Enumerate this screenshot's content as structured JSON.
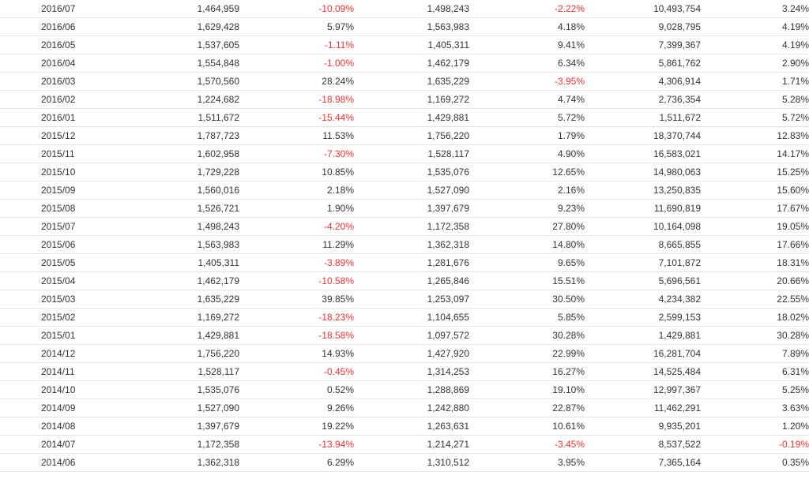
{
  "colors": {
    "text": "#333333",
    "negative": "#ee3333",
    "row_border": "#e2e2e2",
    "background": "#ffffff"
  },
  "rows": [
    {
      "month": "2016/07",
      "col1": "1,464,959",
      "col2": "-10.09%",
      "col3": "1,498,243",
      "col4": "-2.22%",
      "col5": "10,493,754",
      "col6": "3.24%"
    },
    {
      "month": "2016/06",
      "col1": "1,629,428",
      "col2": "5.97%",
      "col3": "1,563,983",
      "col4": "4.18%",
      "col5": "9,028,795",
      "col6": "4.19%"
    },
    {
      "month": "2016/05",
      "col1": "1,537,605",
      "col2": "-1.11%",
      "col3": "1,405,311",
      "col4": "9.41%",
      "col5": "7,399,367",
      "col6": "4.19%"
    },
    {
      "month": "2016/04",
      "col1": "1,554,848",
      "col2": "-1.00%",
      "col3": "1,462,179",
      "col4": "6.34%",
      "col5": "5,861,762",
      "col6": "2.90%"
    },
    {
      "month": "2016/03",
      "col1": "1,570,560",
      "col2": "28.24%",
      "col3": "1,635,229",
      "col4": "-3.95%",
      "col5": "4,306,914",
      "col6": "1.71%"
    },
    {
      "month": "2016/02",
      "col1": "1,224,682",
      "col2": "-18.98%",
      "col3": "1,169,272",
      "col4": "4.74%",
      "col5": "2,736,354",
      "col6": "5.28%"
    },
    {
      "month": "2016/01",
      "col1": "1,511,672",
      "col2": "-15.44%",
      "col3": "1,429,881",
      "col4": "5.72%",
      "col5": "1,511,672",
      "col6": "5.72%"
    },
    {
      "month": "2015/12",
      "col1": "1,787,723",
      "col2": "11.53%",
      "col3": "1,756,220",
      "col4": "1.79%",
      "col5": "18,370,744",
      "col6": "12.83%"
    },
    {
      "month": "2015/11",
      "col1": "1,602,958",
      "col2": "-7.30%",
      "col3": "1,528,117",
      "col4": "4.90%",
      "col5": "16,583,021",
      "col6": "14.17%"
    },
    {
      "month": "2015/10",
      "col1": "1,729,228",
      "col2": "10.85%",
      "col3": "1,535,076",
      "col4": "12.65%",
      "col5": "14,980,063",
      "col6": "15.25%"
    },
    {
      "month": "2015/09",
      "col1": "1,560,016",
      "col2": "2.18%",
      "col3": "1,527,090",
      "col4": "2.16%",
      "col5": "13,250,835",
      "col6": "15.60%"
    },
    {
      "month": "2015/08",
      "col1": "1,526,721",
      "col2": "1.90%",
      "col3": "1,397,679",
      "col4": "9.23%",
      "col5": "11,690,819",
      "col6": "17.67%"
    },
    {
      "month": "2015/07",
      "col1": "1,498,243",
      "col2": "-4.20%",
      "col3": "1,172,358",
      "col4": "27.80%",
      "col5": "10,164,098",
      "col6": "19.05%"
    },
    {
      "month": "2015/06",
      "col1": "1,563,983",
      "col2": "11.29%",
      "col3": "1,362,318",
      "col4": "14.80%",
      "col5": "8,665,855",
      "col6": "17.66%"
    },
    {
      "month": "2015/05",
      "col1": "1,405,311",
      "col2": "-3.89%",
      "col3": "1,281,676",
      "col4": "9.65%",
      "col5": "7,101,872",
      "col6": "18.31%"
    },
    {
      "month": "2015/04",
      "col1": "1,462,179",
      "col2": "-10.58%",
      "col3": "1,265,846",
      "col4": "15.51%",
      "col5": "5,696,561",
      "col6": "20.66%"
    },
    {
      "month": "2015/03",
      "col1": "1,635,229",
      "col2": "39.85%",
      "col3": "1,253,097",
      "col4": "30.50%",
      "col5": "4,234,382",
      "col6": "22.55%"
    },
    {
      "month": "2015/02",
      "col1": "1,169,272",
      "col2": "-18.23%",
      "col3": "1,104,655",
      "col4": "5.85%",
      "col5": "2,599,153",
      "col6": "18.02%"
    },
    {
      "month": "2015/01",
      "col1": "1,429,881",
      "col2": "-18.58%",
      "col3": "1,097,572",
      "col4": "30.28%",
      "col5": "1,429,881",
      "col6": "30.28%"
    },
    {
      "month": "2014/12",
      "col1": "1,756,220",
      "col2": "14.93%",
      "col3": "1,427,920",
      "col4": "22.99%",
      "col5": "16,281,704",
      "col6": "7.89%"
    },
    {
      "month": "2014/11",
      "col1": "1,528,117",
      "col2": "-0.45%",
      "col3": "1,314,253",
      "col4": "16.27%",
      "col5": "14,525,484",
      "col6": "6.31%"
    },
    {
      "month": "2014/10",
      "col1": "1,535,076",
      "col2": "0.52%",
      "col3": "1,288,869",
      "col4": "19.10%",
      "col5": "12,997,367",
      "col6": "5.25%"
    },
    {
      "month": "2014/09",
      "col1": "1,527,090",
      "col2": "9.26%",
      "col3": "1,242,880",
      "col4": "22.87%",
      "col5": "11,462,291",
      "col6": "3.63%"
    },
    {
      "month": "2014/08",
      "col1": "1,397,679",
      "col2": "19.22%",
      "col3": "1,263,631",
      "col4": "10.61%",
      "col5": "9,935,201",
      "col6": "1.20%"
    },
    {
      "month": "2014/07",
      "col1": "1,172,358",
      "col2": "-13.94%",
      "col3": "1,214,271",
      "col4": "-3.45%",
      "col5": "8,537,522",
      "col6": "-0.19%"
    },
    {
      "month": "2014/06",
      "col1": "1,362,318",
      "col2": "6.29%",
      "col3": "1,310,512",
      "col4": "3.95%",
      "col5": "7,365,164",
      "col6": "0.35%"
    }
  ]
}
